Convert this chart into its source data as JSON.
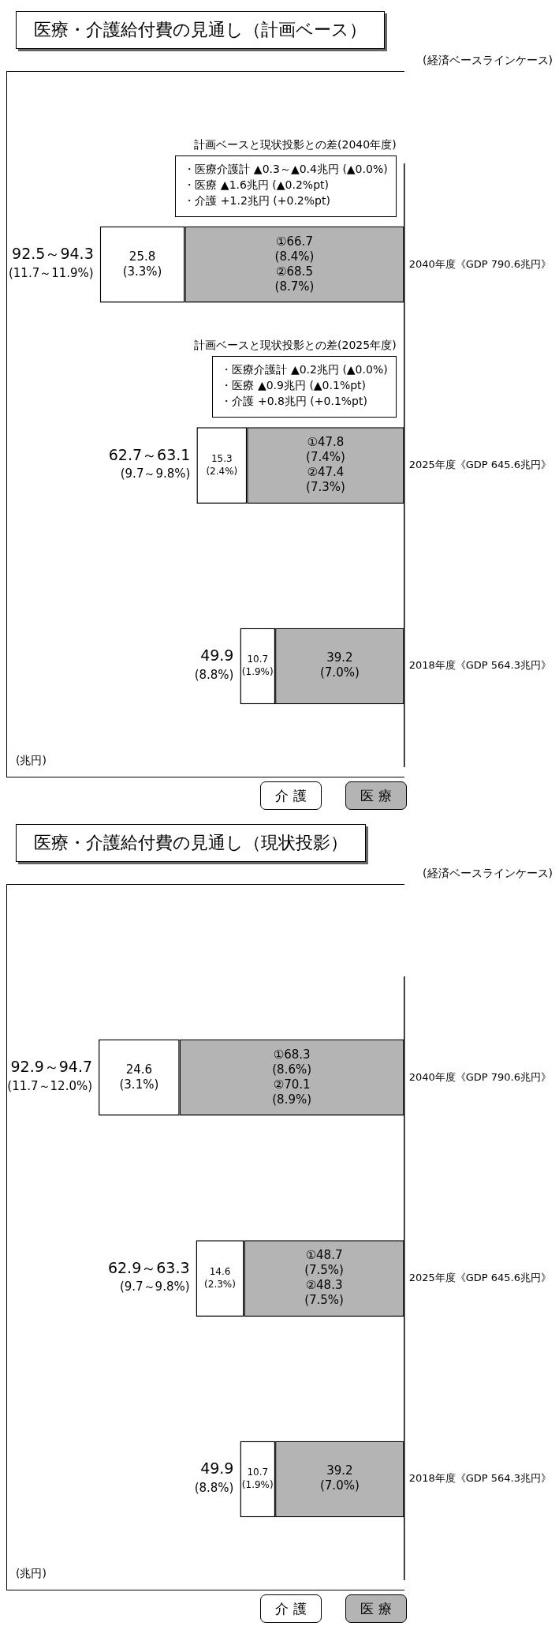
{
  "chart_data": [
    {
      "type": "bar",
      "orientation": "horizontal",
      "title": "医療・介護給付費の見通し（計画ベース）",
      "ylabel": "(兆円)",
      "stacked": true,
      "legend": "bottom",
      "tick_labels": "y",
      "categories": [
        "2040年度《GDP 790.6兆円》",
        "2025年度《GDP 645.6兆円》",
        "2018年度《GDP 564.3兆円》"
      ],
      "series": [
        {
          "name": "医 療",
          "color": "#b4b4b4",
          "values": [
            66.7,
            47.8,
            39.2
          ],
          "value_labels": [
            "①66.7\n(8.4%)\n②68.5\n(8.7%)",
            "①47.8\n(7.4%)\n②47.4\n(7.3%)",
            "39.2\n(7.0%)"
          ]
        },
        {
          "name": "介 護",
          "color": "#ffffff",
          "values": [
            25.8,
            15.3,
            10.7
          ],
          "value_labels": [
            "25.8\n(3.3%)",
            "15.3\n(2.4%)",
            "10.7\n(1.9%)"
          ]
        }
      ],
      "totals": [
        "92.5～94.3\n(11.7～11.9%)",
        "62.7～63.1\n(9.7～9.8%)",
        "49.9\n(8.8%)"
      ],
      "annotations": [
        "(経済ベースラインケース)",
        "計画ベースと現状投影との差(2040年度)",
        "・医療介護計 ▲0.3～▲0.4兆円 (▲0.0%)",
        "・医療 ▲1.6兆円 (▲0.2%pt)",
        "・介護 +1.2兆円 (+0.2%pt)",
        "計画ベースと現状投影との差(2025年度)",
        "・医療介護計 ▲0.2兆円 (▲0.0%)",
        "・医療 ▲0.9兆円 (▲0.1%pt)",
        "・介護 +0.8兆円 (+0.1%pt)"
      ]
    },
    {
      "type": "bar",
      "orientation": "horizontal",
      "title": "医療・介護給付費の見通し（現状投影）",
      "ylabel": "(兆円)",
      "stacked": true,
      "legend": "bottom",
      "tick_labels": "y",
      "categories": [
        "2040年度《GDP 790.6兆円》",
        "2025年度《GDP 645.6兆円》",
        "2018年度《GDP 564.3兆円》"
      ],
      "series": [
        {
          "name": "医 療",
          "color": "#b4b4b4",
          "values": [
            68.3,
            48.7,
            39.2
          ],
          "value_labels": [
            "①68.3\n(8.6%)\n②70.1\n(8.9%)",
            "①48.7\n(7.5%)\n②48.3\n(7.5%)",
            "39.2\n(7.0%)"
          ]
        },
        {
          "name": "介 護",
          "color": "#ffffff",
          "values": [
            24.6,
            14.6,
            10.7
          ],
          "value_labels": [
            "24.6\n(3.1%)",
            "14.6\n(2.3%)",
            "10.7\n(1.9%)"
          ]
        }
      ],
      "totals": [
        "92.9～94.7\n(11.7～12.0%)",
        "62.9～63.3\n(9.7～9.8%)",
        "49.9\n(8.8%)"
      ],
      "annotations": [
        "(経済ベースラインケース)"
      ]
    }
  ]
}
